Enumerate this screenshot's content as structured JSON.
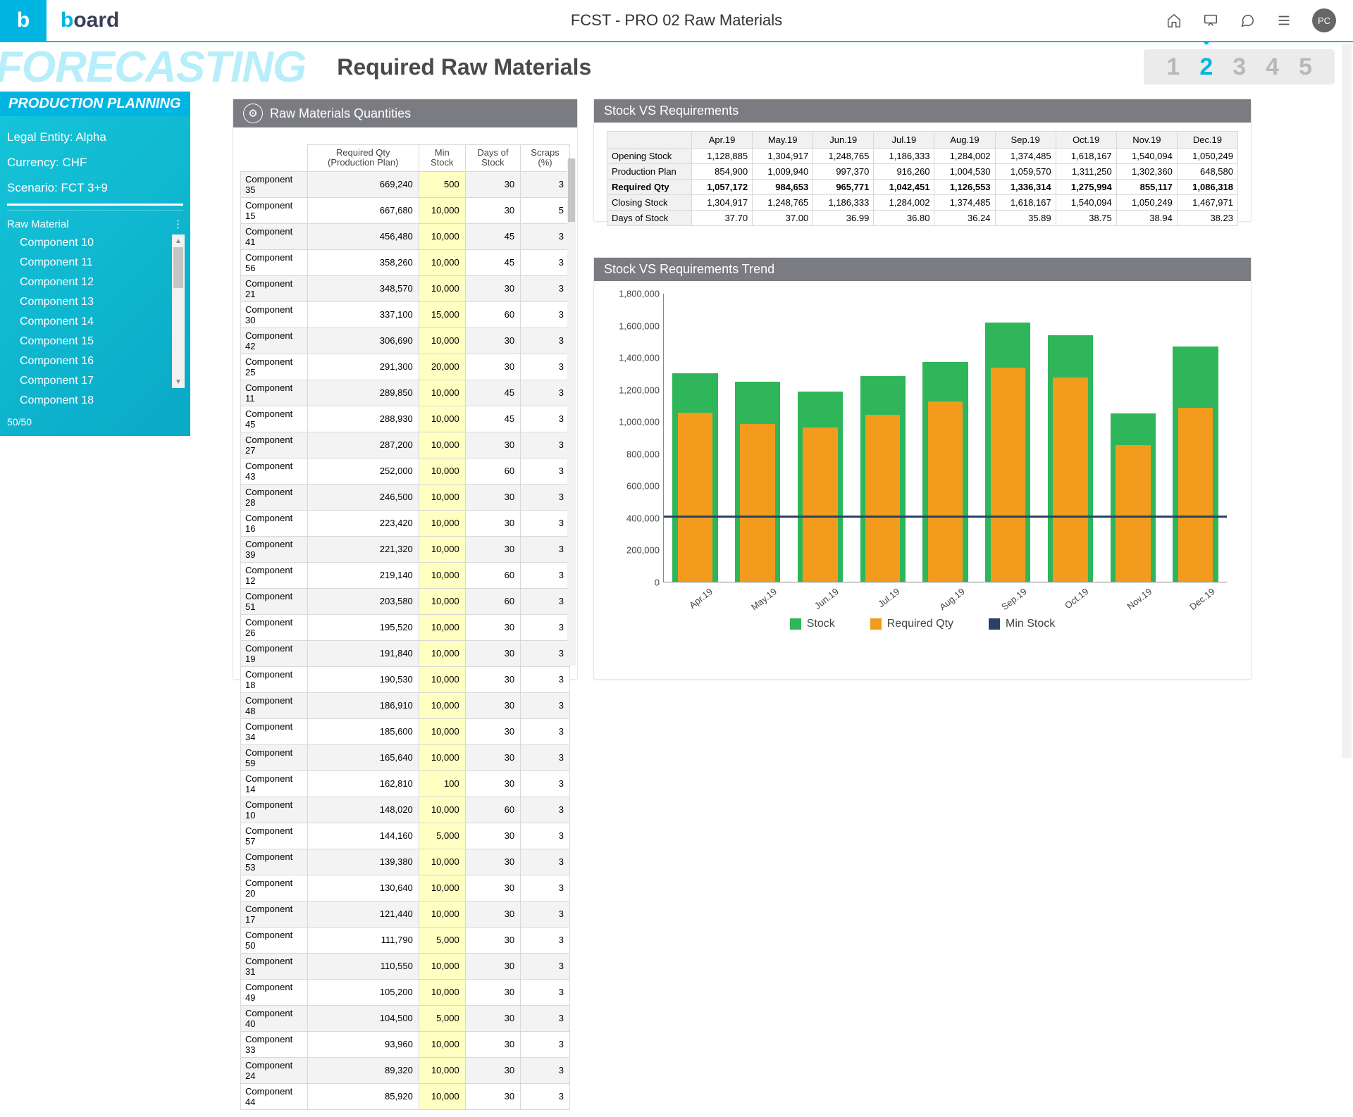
{
  "topbar": {
    "logo_letter": "b",
    "logo_text_pre": "b",
    "logo_text_post": "oard",
    "title": "FCST - PRO 02 Raw Materials",
    "avatar": "PC"
  },
  "page": {
    "watermark": "FORECASTING",
    "title": "Required Raw Materials",
    "steps": [
      "1",
      "2",
      "3",
      "4",
      "5"
    ],
    "active_step": 1
  },
  "sidebar": {
    "band": "PRODUCTION PLANNING",
    "entity": "Legal Entity: Alpha",
    "currency": "Currency:  CHF",
    "scenario": "Scenario: FCT 3+9",
    "section": "Raw Material",
    "components": [
      "Component 10",
      "Component 11",
      "Component 12",
      "Component 13",
      "Component 14",
      "Component 15",
      "Component 16",
      "Component 17",
      "Component 18"
    ],
    "counter": "50/50"
  },
  "rmq": {
    "panel_title": "Raw Materials Quantities",
    "headers": [
      "Required Qty (Production Plan)",
      "Min Stock",
      "Days of Stock",
      "Scraps (%)"
    ],
    "rows": [
      {
        "n": "Component 35",
        "r": "669,240",
        "m": "500",
        "d": "30",
        "s": "3"
      },
      {
        "n": "Component 15",
        "r": "667,680",
        "m": "10,000",
        "d": "30",
        "s": "5"
      },
      {
        "n": "Component 41",
        "r": "456,480",
        "m": "10,000",
        "d": "45",
        "s": "3"
      },
      {
        "n": "Component 56",
        "r": "358,260",
        "m": "10,000",
        "d": "45",
        "s": "3"
      },
      {
        "n": "Component 21",
        "r": "348,570",
        "m": "10,000",
        "d": "30",
        "s": "3"
      },
      {
        "n": "Component 30",
        "r": "337,100",
        "m": "15,000",
        "d": "60",
        "s": "3"
      },
      {
        "n": "Component 42",
        "r": "306,690",
        "m": "10,000",
        "d": "30",
        "s": "3"
      },
      {
        "n": "Component 25",
        "r": "291,300",
        "m": "20,000",
        "d": "30",
        "s": "3"
      },
      {
        "n": "Component 11",
        "r": "289,850",
        "m": "10,000",
        "d": "45",
        "s": "3"
      },
      {
        "n": "Component 45",
        "r": "288,930",
        "m": "10,000",
        "d": "45",
        "s": "3"
      },
      {
        "n": "Component 27",
        "r": "287,200",
        "m": "10,000",
        "d": "30",
        "s": "3"
      },
      {
        "n": "Component 43",
        "r": "252,000",
        "m": "10,000",
        "d": "60",
        "s": "3"
      },
      {
        "n": "Component 28",
        "r": "246,500",
        "m": "10,000",
        "d": "30",
        "s": "3"
      },
      {
        "n": "Component 16",
        "r": "223,420",
        "m": "10,000",
        "d": "30",
        "s": "3"
      },
      {
        "n": "Component 39",
        "r": "221,320",
        "m": "10,000",
        "d": "30",
        "s": "3"
      },
      {
        "n": "Component 12",
        "r": "219,140",
        "m": "10,000",
        "d": "60",
        "s": "3"
      },
      {
        "n": "Component 51",
        "r": "203,580",
        "m": "10,000",
        "d": "60",
        "s": "3"
      },
      {
        "n": "Component 26",
        "r": "195,520",
        "m": "10,000",
        "d": "30",
        "s": "3"
      },
      {
        "n": "Component 19",
        "r": "191,840",
        "m": "10,000",
        "d": "30",
        "s": "3"
      },
      {
        "n": "Component 18",
        "r": "190,530",
        "m": "10,000",
        "d": "30",
        "s": "3"
      },
      {
        "n": "Component 48",
        "r": "186,910",
        "m": "10,000",
        "d": "30",
        "s": "3"
      },
      {
        "n": "Component 34",
        "r": "185,600",
        "m": "10,000",
        "d": "30",
        "s": "3"
      },
      {
        "n": "Component 59",
        "r": "165,640",
        "m": "10,000",
        "d": "30",
        "s": "3"
      },
      {
        "n": "Component 14",
        "r": "162,810",
        "m": "100",
        "d": "30",
        "s": "3"
      },
      {
        "n": "Component 10",
        "r": "148,020",
        "m": "10,000",
        "d": "60",
        "s": "3"
      },
      {
        "n": "Component 57",
        "r": "144,160",
        "m": "5,000",
        "d": "30",
        "s": "3"
      },
      {
        "n": "Component 53",
        "r": "139,380",
        "m": "10,000",
        "d": "30",
        "s": "3"
      },
      {
        "n": "Component 20",
        "r": "130,640",
        "m": "10,000",
        "d": "30",
        "s": "3"
      },
      {
        "n": "Component 17",
        "r": "121,440",
        "m": "10,000",
        "d": "30",
        "s": "3"
      },
      {
        "n": "Component 50",
        "r": "111,790",
        "m": "5,000",
        "d": "30",
        "s": "3"
      },
      {
        "n": "Component 31",
        "r": "110,550",
        "m": "10,000",
        "d": "30",
        "s": "3"
      },
      {
        "n": "Component 49",
        "r": "105,200",
        "m": "10,000",
        "d": "30",
        "s": "3"
      },
      {
        "n": "Component 40",
        "r": "104,500",
        "m": "5,000",
        "d": "30",
        "s": "3"
      },
      {
        "n": "Component 33",
        "r": "93,960",
        "m": "10,000",
        "d": "30",
        "s": "3"
      },
      {
        "n": "Component 24",
        "r": "89,320",
        "m": "10,000",
        "d": "30",
        "s": "3"
      },
      {
        "n": "Component 44",
        "r": "85,920",
        "m": "10,000",
        "d": "30",
        "s": "3"
      }
    ]
  },
  "svr": {
    "panel_title": "Stock VS Requirements",
    "months": [
      "Apr.19",
      "May.19",
      "Jun.19",
      "Jul.19",
      "Aug.19",
      "Sep.19",
      "Oct.19",
      "Nov.19",
      "Dec.19"
    ],
    "rows": [
      {
        "l": "Opening Stock",
        "v": [
          "1,128,885",
          "1,304,917",
          "1,248,765",
          "1,186,333",
          "1,284,002",
          "1,374,485",
          "1,618,167",
          "1,540,094",
          "1,050,249"
        ],
        "b": false
      },
      {
        "l": "Production Plan",
        "v": [
          "854,900",
          "1,009,940",
          "997,370",
          "916,260",
          "1,004,530",
          "1,059,570",
          "1,311,250",
          "1,302,360",
          "648,580"
        ],
        "b": false
      },
      {
        "l": "Required Qty",
        "v": [
          "1,057,172",
          "984,653",
          "965,771",
          "1,042,451",
          "1,126,553",
          "1,336,314",
          "1,275,994",
          "855,117",
          "1,086,318"
        ],
        "b": true
      },
      {
        "l": "Closing Stock",
        "v": [
          "1,304,917",
          "1,248,765",
          "1,186,333",
          "1,284,002",
          "1,374,485",
          "1,618,167",
          "1,540,094",
          "1,050,249",
          "1,467,971"
        ],
        "b": false
      },
      {
        "l": "Days of Stock",
        "v": [
          "37.70",
          "37.00",
          "36.99",
          "36.80",
          "36.24",
          "35.89",
          "38.75",
          "38.94",
          "38.23"
        ],
        "b": false
      }
    ]
  },
  "trend": {
    "panel_title": "Stock VS Requirements Trend",
    "type": "bar",
    "months": [
      "Apr.19",
      "May.19",
      "Jun.19",
      "Jul.19",
      "Aug.19",
      "Sep.19",
      "Oct.19",
      "Nov.19",
      "Dec.19"
    ],
    "stock": [
      1304917,
      1248765,
      1186333,
      1284002,
      1374485,
      1618167,
      1540094,
      1050249,
      1467971
    ],
    "required_qty": [
      1057172,
      984653,
      965771,
      1042451,
      1126553,
      1336314,
      1275994,
      855117,
      1086318
    ],
    "min_stock_line": 400000,
    "ylim": [
      0,
      1800000
    ],
    "ytick_step": 200000,
    "colors": {
      "stock": "#2fb65a",
      "required": "#f39b1d",
      "min": "#2a4365",
      "grid": "#ffffff"
    },
    "legend": [
      "Stock",
      "Required Qty",
      "Min Stock"
    ],
    "bar_width_pct": 6.2,
    "group_gap_pct": 10.4,
    "label_fontsize": 13
  }
}
